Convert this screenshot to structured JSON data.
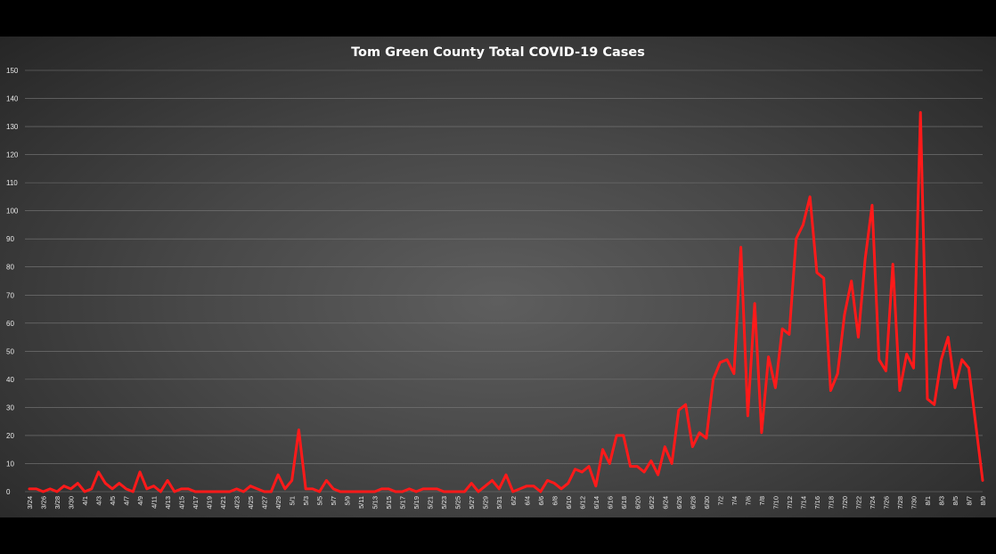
{
  "chart_data": {
    "type": "line",
    "title": "Tom Green County Total COVID-19 Cases",
    "xlabel": "",
    "ylabel": "",
    "ylim": [
      0,
      150
    ],
    "yticks": [
      0,
      10,
      20,
      30,
      40,
      50,
      60,
      70,
      80,
      90,
      100,
      110,
      120,
      130,
      140,
      150
    ],
    "grid": true,
    "legend": "none",
    "line_color": "#ff1a1a",
    "x": [
      "3/24",
      "3/25",
      "3/26",
      "3/27",
      "3/28",
      "3/29",
      "3/30",
      "3/31",
      "4/1",
      "4/2",
      "4/3",
      "4/4",
      "4/5",
      "4/6",
      "4/7",
      "4/8",
      "4/9",
      "4/10",
      "4/11",
      "4/12",
      "4/13",
      "4/14",
      "4/15",
      "4/16",
      "4/17",
      "4/18",
      "4/19",
      "4/20",
      "4/21",
      "4/22",
      "4/23",
      "4/24",
      "4/25",
      "4/26",
      "4/27",
      "4/28",
      "4/29",
      "4/30",
      "5/1",
      "5/2",
      "5/3",
      "5/4",
      "5/5",
      "5/6",
      "5/7",
      "5/8",
      "5/9",
      "5/10",
      "5/11",
      "5/12",
      "5/13",
      "5/14",
      "5/15",
      "5/16",
      "5/17",
      "5/18",
      "5/19",
      "5/20",
      "5/21",
      "5/22",
      "5/23",
      "5/24",
      "5/25",
      "5/26",
      "5/27",
      "5/28",
      "5/29",
      "5/30",
      "5/31",
      "6/1",
      "6/2",
      "6/3",
      "6/4",
      "6/5",
      "6/6",
      "6/7",
      "6/8",
      "6/9",
      "6/10",
      "6/11",
      "6/12",
      "6/13",
      "6/14",
      "6/15",
      "6/16",
      "6/17",
      "6/18",
      "6/19",
      "6/20",
      "6/21",
      "6/22",
      "6/23",
      "6/24",
      "6/25",
      "6/26",
      "6/27",
      "6/28",
      "6/29",
      "6/30",
      "7/1",
      "7/2",
      "7/3",
      "7/4",
      "7/5",
      "7/6",
      "7/7",
      "7/8",
      "7/9",
      "7/10",
      "7/11",
      "7/12",
      "7/13",
      "7/14",
      "7/15",
      "7/16",
      "7/17",
      "7/18",
      "7/19",
      "7/20",
      "7/21",
      "7/22",
      "7/23",
      "7/24",
      "7/25",
      "7/26",
      "7/27",
      "7/28",
      "7/29",
      "7/30",
      "7/31",
      "8/1",
      "8/2",
      "8/3",
      "8/4",
      "8/5",
      "8/6",
      "8/7",
      "8/8",
      "8/9"
    ],
    "xtick_labels": [
      "3/24",
      "3/26",
      "3/28",
      "3/30",
      "4/1",
      "4/3",
      "4/5",
      "4/7",
      "4/9",
      "4/11",
      "4/13",
      "4/15",
      "4/17",
      "4/19",
      "4/21",
      "4/23",
      "4/25",
      "4/27",
      "4/29",
      "5/1",
      "5/3",
      "5/5",
      "5/7",
      "5/9",
      "5/11",
      "5/13",
      "5/15",
      "5/17",
      "5/19",
      "5/21",
      "5/23",
      "5/25",
      "5/27",
      "5/29",
      "5/31",
      "6/2",
      "6/4",
      "6/6",
      "6/8",
      "6/10",
      "6/12",
      "6/14",
      "6/16",
      "6/18",
      "6/20",
      "6/22",
      "6/24",
      "6/26",
      "6/28",
      "6/30",
      "7/2",
      "7/4",
      "7/6",
      "7/8",
      "7/10",
      "7/12",
      "7/14",
      "7/16",
      "7/18",
      "7/20",
      "7/22",
      "7/24",
      "7/26",
      "7/28",
      "7/30",
      "8/1",
      "8/3",
      "8/5",
      "8/7",
      "8/9"
    ],
    "series": [
      {
        "values": [
          1,
          1,
          0,
          1,
          0,
          2,
          1,
          3,
          0,
          1,
          7,
          3,
          1,
          3,
          1,
          0,
          7,
          1,
          2,
          0,
          4,
          0,
          1,
          1,
          0,
          0,
          0,
          0,
          0,
          0,
          1,
          0,
          2,
          1,
          0,
          0,
          6,
          1,
          4,
          22,
          1,
          1,
          0,
          4,
          1,
          0,
          0,
          0,
          0,
          0,
          0,
          1,
          1,
          0,
          0,
          1,
          0,
          1,
          1,
          1,
          0,
          0,
          0,
          0,
          3,
          0,
          2,
          4,
          1,
          6,
          0,
          1,
          2,
          2,
          0,
          4,
          3,
          1,
          3,
          8,
          7,
          9,
          2,
          15,
          10,
          20,
          20,
          9,
          9,
          7,
          11,
          6,
          16,
          10,
          29,
          31,
          16,
          21,
          19,
          40,
          46,
          47,
          42,
          87,
          27,
          67,
          21,
          48,
          37,
          58,
          56,
          90,
          95,
          105,
          78,
          76,
          36,
          42,
          63,
          75,
          55,
          83,
          102,
          47,
          43,
          81,
          36,
          49,
          44,
          135,
          33,
          31,
          47,
          55,
          37,
          47,
          44,
          24,
          4
        ]
      }
    ]
  }
}
